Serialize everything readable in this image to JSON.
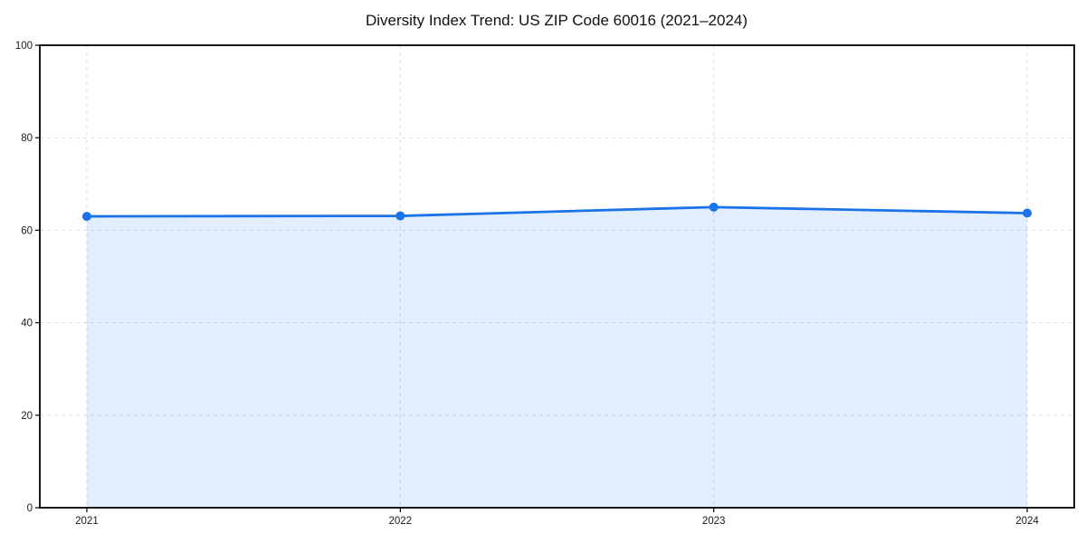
{
  "chart_data": {
    "type": "line",
    "title": "Diversity Index Trend: US ZIP Code 60016 (2021–2024)",
    "x": [
      2021,
      2022,
      2023,
      2024
    ],
    "xtick_labels": [
      "2021",
      "2022",
      "2023",
      "2024"
    ],
    "series": [
      {
        "name": "Diversity Index",
        "values": [
          63.0,
          63.1,
          65.0,
          63.7
        ]
      }
    ],
    "xlabel": "",
    "ylabel": "",
    "ylim": [
      0,
      100
    ],
    "yticks": [
      0,
      20,
      40,
      60,
      80,
      100
    ],
    "grid": true,
    "grid_style": "dashed",
    "legend_position": "none",
    "area_fill": true,
    "colors": {
      "line": "#1a73e8",
      "marker": "#1a73e8",
      "area": "rgba(26,115,232,0.12)",
      "grid": "#dedede",
      "frame": "#000000",
      "title_text": "#111111",
      "tick_text": "#1a1a1a",
      "background": "#ffffff"
    }
  }
}
